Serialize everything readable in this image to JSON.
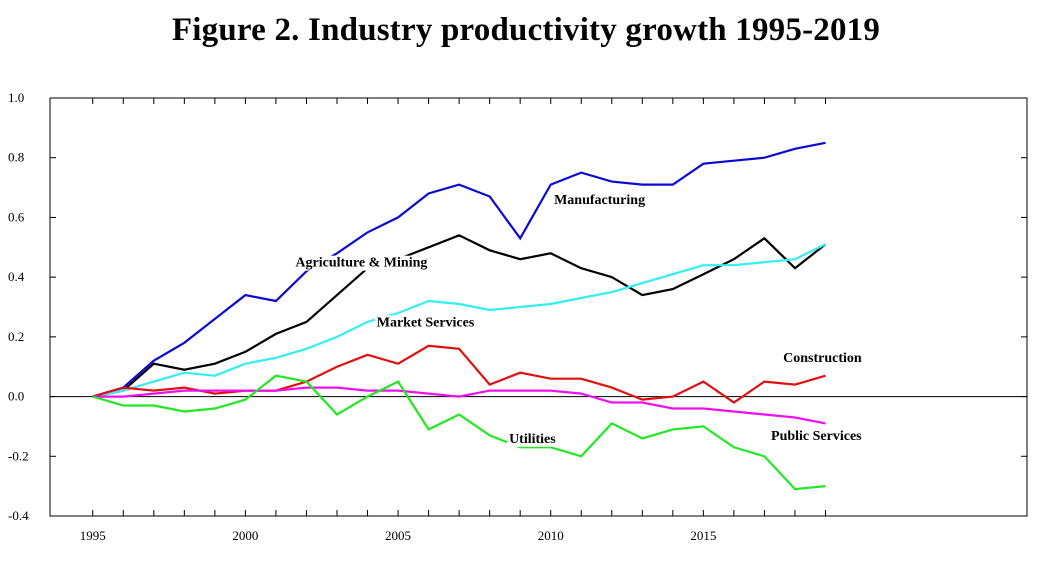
{
  "chart_data": {
    "type": "line",
    "title": "Figure 2. Industry productivity growth 1995-2019",
    "xlabel": "",
    "ylabel": "",
    "xlim": [
      1993.6,
      2025.6
    ],
    "ylim": [
      -0.4,
      1.0
    ],
    "x_ticks": [
      1995,
      2000,
      2005,
      2010,
      2015
    ],
    "y_ticks": [
      -0.4,
      -0.2,
      0.0,
      0.2,
      0.4,
      0.6,
      0.8,
      1.0
    ],
    "y_tick_labels": [
      "-0.4",
      "-0.2",
      "0.0",
      "0.2",
      "0.4",
      "0.6",
      "0.8",
      "1.0"
    ],
    "zero_line": true,
    "grid": false,
    "x": [
      1995,
      1996,
      1997,
      1998,
      1999,
      2000,
      2001,
      2002,
      2003,
      2004,
      2005,
      2006,
      2007,
      2008,
      2009,
      2010,
      2011,
      2012,
      2013,
      2014,
      2015,
      2016,
      2017,
      2018,
      2019
    ],
    "series": [
      {
        "name": "Manufacturing",
        "color": "#0a0ad2",
        "values": [
          0.0,
          0.03,
          0.12,
          0.18,
          0.26,
          0.34,
          0.32,
          0.42,
          0.48,
          0.55,
          0.6,
          0.68,
          0.71,
          0.67,
          0.53,
          0.71,
          0.75,
          0.72,
          0.71,
          0.71,
          0.78,
          0.79,
          0.8,
          0.83,
          0.85
        ]
      },
      {
        "name": "Agriculture & Mining",
        "color": "#000000",
        "values": [
          0.0,
          0.02,
          0.11,
          0.09,
          0.11,
          0.15,
          0.21,
          0.25,
          0.34,
          0.43,
          0.46,
          0.5,
          0.54,
          0.49,
          0.46,
          0.48,
          0.43,
          0.4,
          0.34,
          0.36,
          0.41,
          0.46,
          0.53,
          0.43,
          0.51
        ]
      },
      {
        "name": "Market Services",
        "color": "#33eef2",
        "values": [
          0.0,
          0.02,
          0.05,
          0.08,
          0.07,
          0.11,
          0.13,
          0.16,
          0.2,
          0.25,
          0.28,
          0.32,
          0.31,
          0.29,
          0.3,
          0.31,
          0.33,
          0.35,
          0.38,
          0.41,
          0.44,
          0.44,
          0.45,
          0.46,
          0.51
        ]
      },
      {
        "name": "Construction",
        "color": "#e01010",
        "values": [
          0.0,
          0.03,
          0.02,
          0.03,
          0.01,
          0.02,
          0.02,
          0.05,
          0.1,
          0.14,
          0.11,
          0.17,
          0.16,
          0.04,
          0.08,
          0.06,
          0.06,
          0.03,
          -0.01,
          0.0,
          0.05,
          -0.02,
          0.05,
          0.04,
          0.07
        ]
      },
      {
        "name": "Public Services",
        "color": "#ee10ee",
        "values": [
          0.0,
          0.0,
          0.01,
          0.02,
          0.02,
          0.02,
          0.02,
          0.03,
          0.03,
          0.02,
          0.02,
          0.01,
          0.0,
          0.02,
          0.02,
          0.02,
          0.01,
          -0.02,
          -0.02,
          -0.04,
          -0.04,
          -0.05,
          -0.06,
          -0.07,
          -0.09
        ]
      },
      {
        "name": "Utilities",
        "color": "#22e822",
        "values": [
          0.0,
          -0.03,
          -0.03,
          -0.05,
          -0.04,
          -0.01,
          0.07,
          0.05,
          -0.06,
          0.0,
          0.05,
          -0.11,
          -0.06,
          -0.13,
          -0.17,
          -0.17,
          -0.2,
          -0.09,
          -0.14,
          -0.11,
          -0.1,
          -0.17,
          -0.2,
          -0.31,
          -0.3
        ]
      }
    ]
  }
}
